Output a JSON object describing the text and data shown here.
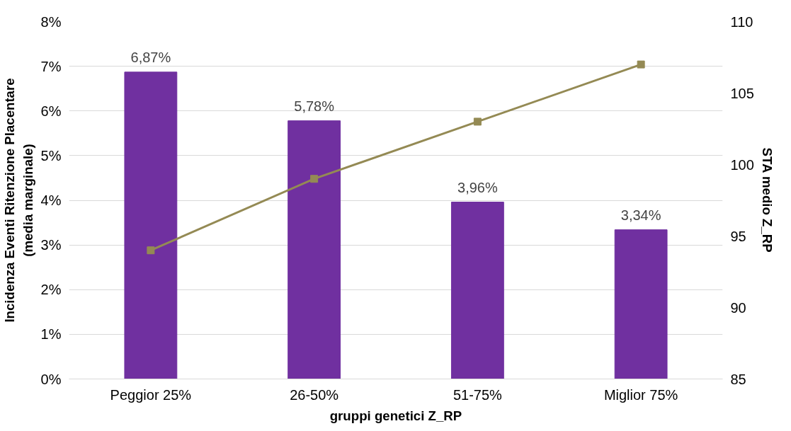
{
  "chart_data": {
    "type": "bar",
    "xlabel": "gruppi genetici Z_RP",
    "ylabel": "Incidenza Eventi Ritenzione Placentare\n(media marginale)",
    "y2label": "STA medio Z_RP",
    "categories": [
      "Peggior 25%",
      "26-50%",
      "51-75%",
      "Miglior 75%"
    ],
    "series": [
      {
        "color": "#7030a0",
        "values": [
          6.87,
          5.78,
          3.96,
          3.34
        ],
        "value_labels": [
          "6,87%",
          "5,78%",
          "3,96%",
          "3,34%"
        ]
      },
      {
        "type": "line",
        "axis": "y2",
        "color": "#948a54",
        "values": [
          94,
          99,
          103,
          107
        ],
        "marker": "square",
        "line_style": "solid"
      }
    ],
    "ylim": [
      0,
      8
    ],
    "yticks": [
      {
        "value": 0,
        "label": "0%"
      },
      {
        "value": 1,
        "label": "1%"
      },
      {
        "value": 2,
        "label": "2%"
      },
      {
        "value": 3,
        "label": "3%"
      },
      {
        "value": 4,
        "label": "4%"
      },
      {
        "value": 5,
        "label": "5%"
      },
      {
        "value": 6,
        "label": "6%"
      },
      {
        "value": 7,
        "label": "7%"
      },
      {
        "value": 8,
        "label": "8%"
      }
    ],
    "y2lim": [
      85,
      110
    ],
    "y2ticks": [
      85,
      90,
      95,
      100,
      105,
      110
    ],
    "grid": "y"
  }
}
